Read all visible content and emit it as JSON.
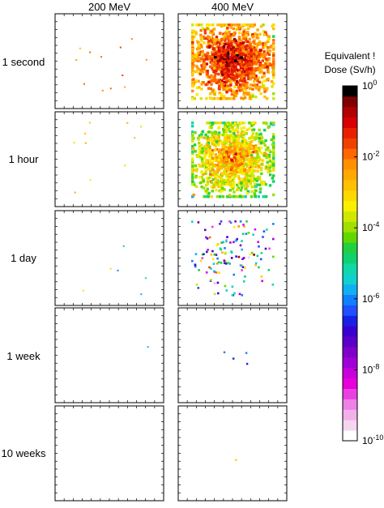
{
  "chart_data": {
    "type": "heatmap",
    "columns": [
      "200 MeV",
      "400 MeV"
    ],
    "rows": [
      "1 second",
      "1 hour",
      "1 day",
      "1 week",
      "10 weeks"
    ],
    "colorbar": {
      "label_line1": "Equivalent !",
      "label_line2": "Dose (Sv/h)",
      "scale": "log",
      "range": [
        -10,
        0
      ],
      "ticks": [
        {
          "base": "10",
          "exp": "0",
          "value": 0
        },
        {
          "base": "10",
          "exp": "-2",
          "value": -2
        },
        {
          "base": "10",
          "exp": "-4",
          "value": -4
        },
        {
          "base": "10",
          "exp": "-6",
          "value": -6
        },
        {
          "base": "10",
          "exp": "-8",
          "value": -8
        },
        {
          "base": "10",
          "exp": "-10",
          "value": -10
        }
      ],
      "colors": [
        "#ffffff",
        "#f5d5f0",
        "#f2b0ea",
        "#ee80e6",
        "#ea40e2",
        "#e800dc",
        "#c800dc",
        "#a000d8",
        "#8000c8",
        "#5a00c8",
        "#3a00d0",
        "#1a20e6",
        "#2050ff",
        "#1080ff",
        "#10b0f0",
        "#10d0d0",
        "#10d8a8",
        "#10d070",
        "#20d040",
        "#60d800",
        "#a0e000",
        "#d0e800",
        "#f8f000",
        "#ffd800",
        "#ffc000",
        "#ffa800",
        "#ff9000",
        "#ff6800",
        "#f04000",
        "#e82000",
        "#d80000",
        "#b00000",
        "#800000",
        "#000000"
      ]
    },
    "panels": [
      {
        "row": "1 second",
        "column": "200 MeV",
        "cluster": "sparse",
        "n": 12,
        "center_log": -2.2,
        "spread_log": 0.5
      },
      {
        "row": "1 second",
        "column": "400 MeV",
        "cluster": "dense",
        "n": 1300,
        "center_log": -1.6,
        "spread_log": 0.5
      },
      {
        "row": "1 hour",
        "column": "200 MeV",
        "cluster": "sparse",
        "n": 10,
        "center_log": -2.9,
        "spread_log": 0.5
      },
      {
        "row": "1 hour",
        "column": "400 MeV",
        "cluster": "dense",
        "n": 1150,
        "center_log": -3.0,
        "spread_log": 0.55
      },
      {
        "row": "1 day",
        "column": "200 MeV",
        "cluster": "sparse",
        "n": 6,
        "center_log": -4.5,
        "spread_log": 1.0
      },
      {
        "row": "1 day",
        "column": "400 MeV",
        "cluster": "medium",
        "n": 140,
        "center_log": -5.2,
        "spread_log": 2.0
      },
      {
        "row": "1 week",
        "column": "200 MeV",
        "cluster": "sparse",
        "n": 1,
        "center_log": -5.9,
        "spread_log": 0.2
      },
      {
        "row": "1 week",
        "column": "400 MeV",
        "cluster": "few",
        "n": 4,
        "center_log": -7.8,
        "spread_log": 1.2
      },
      {
        "row": "10 weeks",
        "column": "200 MeV",
        "cluster": "sparse",
        "n": 0,
        "center_log": -8,
        "spread_log": 0.5
      },
      {
        "row": "10 weeks",
        "column": "400 MeV",
        "cluster": "few",
        "n": 1,
        "center_log": -3.2,
        "spread_log": 0.1
      }
    ]
  }
}
